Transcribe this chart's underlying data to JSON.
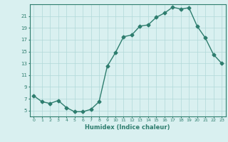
{
  "x": [
    0,
    1,
    2,
    3,
    4,
    5,
    6,
    7,
    8,
    9,
    10,
    11,
    12,
    13,
    14,
    15,
    16,
    17,
    18,
    19,
    20,
    21,
    22,
    23
  ],
  "y": [
    7.5,
    6.5,
    6.2,
    6.7,
    5.5,
    4.8,
    4.8,
    5.2,
    6.5,
    12.5,
    14.8,
    17.5,
    17.8,
    19.3,
    19.5,
    20.8,
    21.5,
    22.5,
    22.2,
    22.4,
    19.3,
    17.3,
    14.5,
    13.0
  ],
  "xlim": [
    -0.5,
    23.5
  ],
  "ylim": [
    4.0,
    23.0
  ],
  "yticks": [
    5,
    7,
    9,
    11,
    13,
    15,
    17,
    19,
    21
  ],
  "xticks": [
    0,
    1,
    2,
    3,
    4,
    5,
    6,
    7,
    8,
    9,
    10,
    11,
    12,
    13,
    14,
    15,
    16,
    17,
    18,
    19,
    20,
    21,
    22,
    23
  ],
  "xlabel": "Humidex (Indice chaleur)",
  "line_color": "#2e7d6e",
  "marker": "D",
  "marker_size": 2.5,
  "bg_color": "#d9f0f0",
  "grid_color": "#b0d8d8"
}
